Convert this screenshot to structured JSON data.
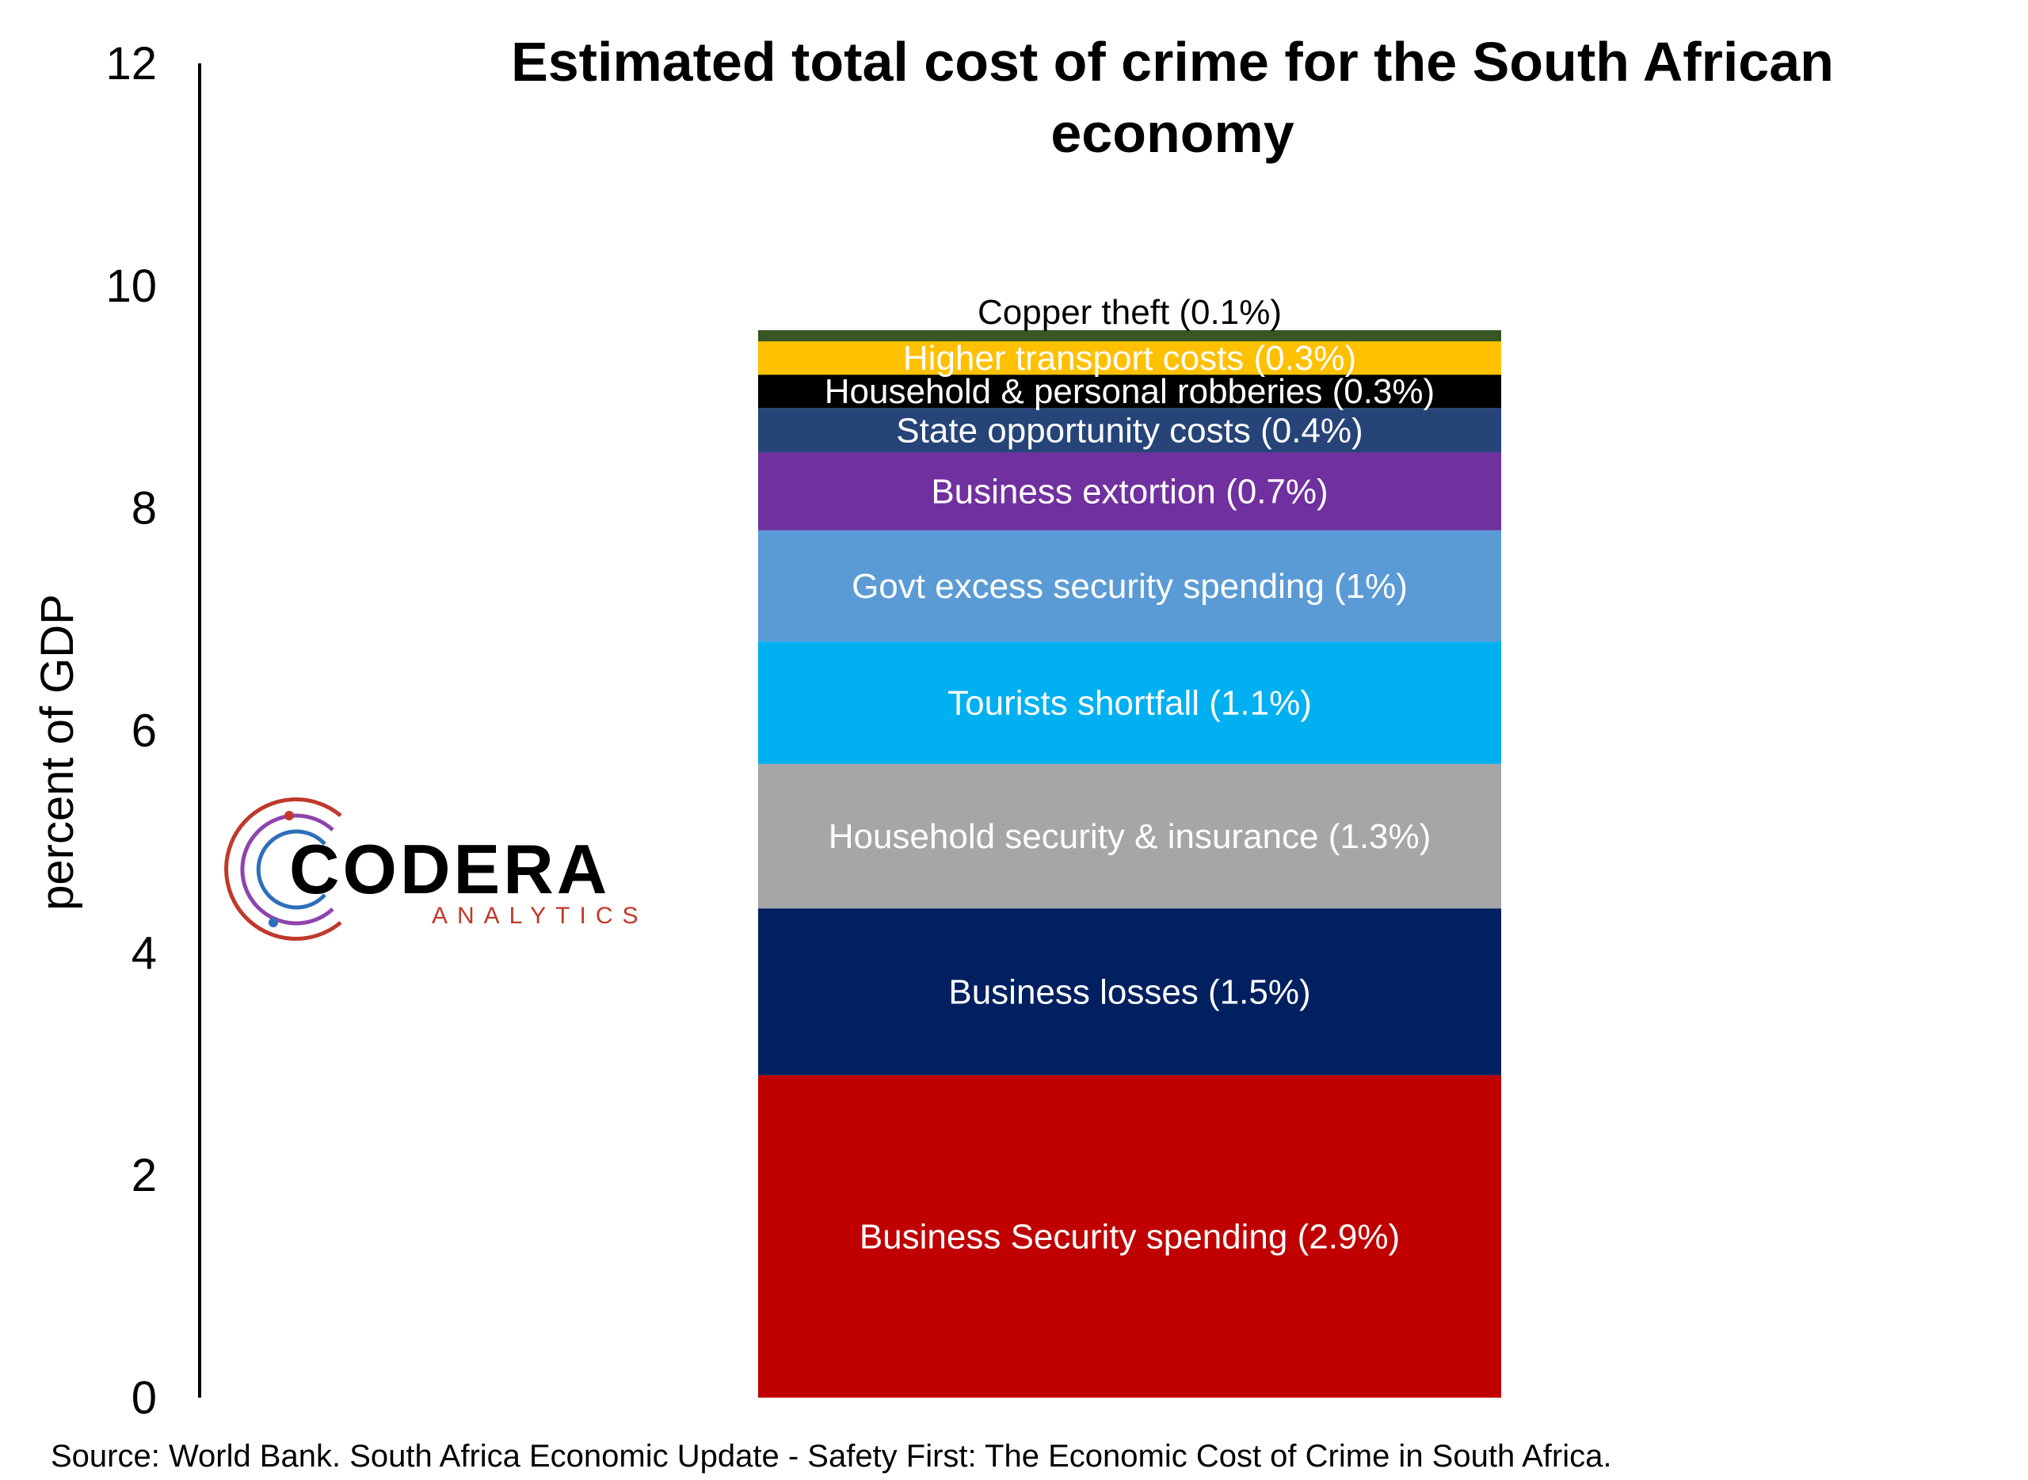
{
  "chart_data": {
    "type": "bar",
    "stacked": true,
    "title_line1": "Estimated total cost of crime for the South African",
    "title_line2": "economy",
    "ylabel": "percent of GDP",
    "ylim": [
      0,
      12
    ],
    "yticks": [
      0,
      2,
      4,
      6,
      8,
      10,
      12
    ],
    "grid": false,
    "series": [
      {
        "name": "Business Security spending (2.9%)",
        "value": 2.9,
        "color": "#C00000",
        "label_color": "#ffffff"
      },
      {
        "name": "Business losses (1.5%)",
        "value": 1.5,
        "color": "#002060",
        "label_color": "#ffffff"
      },
      {
        "name": "Household security & insurance (1.3%)",
        "value": 1.3,
        "color": "#A6A6A6",
        "label_color": "#ffffff"
      },
      {
        "name": "Tourists shortfall (1.1%)",
        "value": 1.1,
        "color": "#00B0F0",
        "label_color": "#ffffff"
      },
      {
        "name": "Govt excess security spending (1%)",
        "value": 1.0,
        "color": "#5B9BD5",
        "label_color": "#ffffff"
      },
      {
        "name": "Business extortion (0.7%)",
        "value": 0.7,
        "color": "#7030A0",
        "label_color": "#ffffff"
      },
      {
        "name": "State opportunity costs (0.4%)",
        "value": 0.4,
        "color": "#264478",
        "label_color": "#ffffff"
      },
      {
        "name": "Household & personal robberies (0.3%)",
        "value": 0.3,
        "color": "#000000",
        "label_color": "#ffffff"
      },
      {
        "name": "Higher transport costs (0.3%)",
        "value": 0.3,
        "color": "#FFC000",
        "label_color": "#ffffff"
      },
      {
        "name": "Copper theft (0.1%)",
        "value": 0.1,
        "color": "#375623",
        "label_color": "#000000"
      }
    ],
    "source": "Source: World Bank. South Africa Economic Update - Safety First: The Economic Cost of Crime in South Africa."
  },
  "logo": {
    "name": "CODERA",
    "sub": "ANALYTICS"
  }
}
